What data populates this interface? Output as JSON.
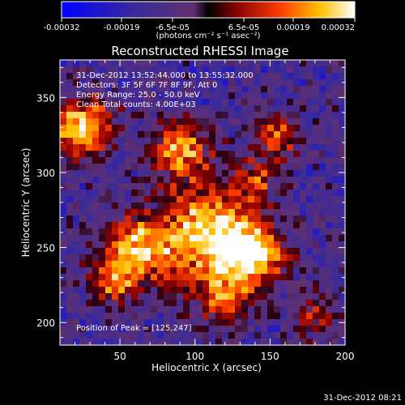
{
  "colorbar": {
    "ticks": [
      "-0.00032",
      "-0.00019",
      "-6.5e-05",
      "6.5e-05",
      "0.00019",
      "0.00032"
    ],
    "unit_label": "(photons cm⁻² s⁻¹ asec⁻²)",
    "range": [
      -0.00032,
      0.00032
    ]
  },
  "chart_data": {
    "type": "heatmap",
    "title": "Reconstructed RHESSI Image",
    "xlabel": "Heliocentric X (arcsec)",
    "ylabel": "Heliocentric Y (arcsec)",
    "xlim": [
      10,
      200
    ],
    "ylim": [
      185,
      375
    ],
    "xticks": [
      "50",
      "100",
      "150",
      "200"
    ],
    "yticks": [
      "200",
      "250",
      "300",
      "350"
    ],
    "annotations": [
      "31-Dec-2012 13:52:44.000 to 13:55:32.000",
      "Detectors: 3F 5F 6F 7F 8F 9F, Att 0",
      "Energy Range: 25.0 - 50.0 keV",
      "Clean     Total counts: 4.00E+03"
    ],
    "peak_label": "Position of Peak = [125,247]",
    "peak": [
      125,
      247
    ],
    "sources": [
      {
        "x": 110,
        "y": 258,
        "amp": 1.0,
        "sigma": 22
      },
      {
        "x": 60,
        "y": 248,
        "amp": 0.85,
        "sigma": 16
      },
      {
        "x": 140,
        "y": 245,
        "amp": 0.8,
        "sigma": 14
      },
      {
        "x": 25,
        "y": 330,
        "amp": 0.9,
        "sigma": 14
      },
      {
        "x": 90,
        "y": 315,
        "amp": 0.7,
        "sigma": 14
      },
      {
        "x": 155,
        "y": 325,
        "amp": 0.6,
        "sigma": 10
      },
      {
        "x": 45,
        "y": 225,
        "amp": 0.5,
        "sigma": 10
      },
      {
        "x": 120,
        "y": 215,
        "amp": 0.55,
        "sigma": 12
      },
      {
        "x": 180,
        "y": 205,
        "amp": 0.5,
        "sigma": 9
      },
      {
        "x": 140,
        "y": 295,
        "amp": 0.45,
        "sigma": 10
      }
    ]
  },
  "footer": {
    "timestamp": "31-Dec-2012 08:21"
  }
}
